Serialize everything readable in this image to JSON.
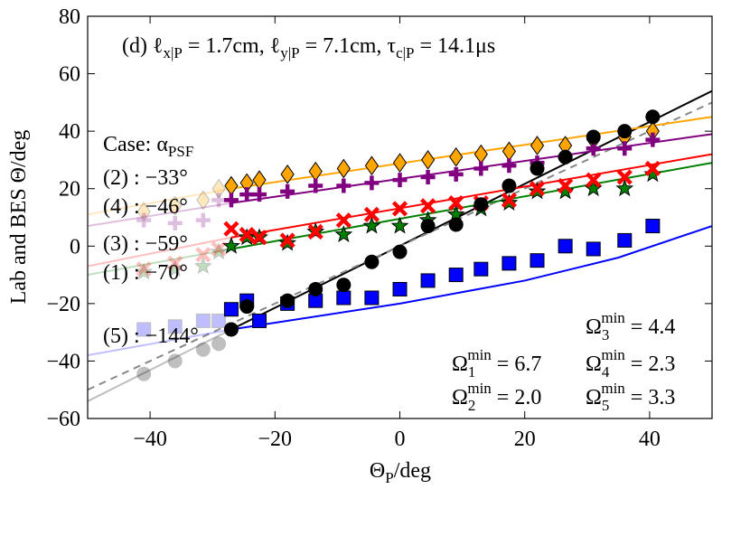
{
  "chart_data": {
    "type": "scatter",
    "annotation": [
      "(d) ℓ",
      "x|P",
      " = 1.7cm, ℓ",
      "y|P",
      " = 7.1cm, τ",
      "c|P",
      " = 14.1μs"
    ],
    "case_header": [
      "Case: α",
      "PSF"
    ],
    "case_labels": [
      "(2) : −33°",
      "(4) : −46°",
      "(3) : −59°",
      "(1) : −70°",
      "(5) : −144°"
    ],
    "omega_labels": [
      [
        "Ω",
        "3",
        "min",
        " = 4.4"
      ],
      [
        "Ω",
        "1",
        "min",
        " = 6.7"
      ],
      [
        "Ω",
        "4",
        "min",
        " = 2.3"
      ],
      [
        "Ω",
        "2",
        "min",
        " = 2.0"
      ],
      [
        "Ω",
        "5",
        "min",
        " = 3.3"
      ]
    ],
    "xlabel": [
      "Θ",
      "P",
      "/deg"
    ],
    "ylabel": "Lab and BES Θ/deg",
    "xlim": [
      -50,
      50
    ],
    "xticks": [
      {
        "value": -40,
        "label": "−40"
      },
      {
        "value": -20,
        "label": "−20"
      },
      0,
      20,
      40
    ],
    "ylim": [
      -60,
      80
    ],
    "yticks": [
      {
        "value": -60,
        "label": "−60"
      },
      {
        "value": -40,
        "label": "−40"
      },
      {
        "value": -20,
        "label": "−20"
      },
      0,
      20,
      40,
      60,
      80
    ],
    "lines": [
      {
        "color": "#000000",
        "opacity": 0.25,
        "x": [
          -50,
          -27
        ],
        "values": [
          -54,
          -29
        ]
      },
      {
        "color": "#000000",
        "opacity": 1,
        "x": [
          -27,
          50
        ],
        "values": [
          -29,
          54
        ]
      },
      {
        "color": "#888888",
        "opacity": 1,
        "dash": true,
        "x": [
          -50,
          50
        ],
        "values": [
          -50,
          50
        ]
      },
      {
        "color": "#ffa500",
        "opacity": 0.25,
        "x": [
          -50,
          -27
        ],
        "values": [
          11,
          20
        ]
      },
      {
        "color": "#ffa500",
        "opacity": 1,
        "x": [
          -27,
          50
        ],
        "values": [
          20,
          45
        ]
      },
      {
        "color": "#800080",
        "opacity": 0.25,
        "x": [
          -50,
          -27
        ],
        "values": [
          7,
          15
        ]
      },
      {
        "color": "#800080",
        "opacity": 1,
        "x": [
          -27,
          50
        ],
        "values": [
          15,
          39
        ]
      },
      {
        "color": "#ff0000",
        "opacity": 0.25,
        "x": [
          -50,
          -27
        ],
        "values": [
          -7,
          3
        ]
      },
      {
        "color": "#ff0000",
        "opacity": 1,
        "x": [
          -27,
          50
        ],
        "values": [
          3,
          32
        ]
      },
      {
        "color": "#008000",
        "opacity": 0.25,
        "x": [
          -50,
          -27
        ],
        "values": [
          -10,
          -1
        ]
      },
      {
        "color": "#008000",
        "opacity": 1,
        "x": [
          -27,
          50
        ],
        "values": [
          -1,
          29
        ]
      },
      {
        "color": "#0000ff",
        "opacity": 0.25,
        "x": [
          -50,
          -27
        ],
        "values": [
          -38,
          -29
        ]
      },
      {
        "color": "#0000ff",
        "opacity": 1,
        "x": [
          -27,
          0,
          20,
          35,
          50
        ],
        "values": [
          -29,
          -20,
          -12,
          -4,
          7
        ]
      }
    ],
    "series": [
      {
        "marker": "diamond",
        "color": "#ffa500",
        "opacity": 0.25,
        "x": [
          -41,
          -36,
          -31.5,
          -29
        ],
        "values": [
          12,
          14,
          16,
          20
        ]
      },
      {
        "marker": "diamond",
        "color": "#ffa500",
        "opacity": 1,
        "x": [
          -27,
          -24.5,
          -22.5,
          -18,
          -13.5,
          -9,
          -4.5,
          0,
          4.5,
          9,
          13,
          17.5,
          22,
          26.5,
          31,
          36,
          40.5
        ],
        "values": [
          21,
          22,
          23,
          25,
          26,
          27,
          28,
          29,
          30,
          31,
          32,
          33,
          35,
          35,
          37,
          38,
          40
        ]
      },
      {
        "marker": "plus",
        "color": "#800080",
        "opacity": 0.25,
        "x": [
          -41,
          -36,
          -31.5,
          -29
        ],
        "values": [
          9,
          8,
          9,
          16
        ]
      },
      {
        "marker": "plus",
        "color": "#800080",
        "opacity": 1,
        "x": [
          -27,
          -24.5,
          -22.5,
          -18,
          -13.5,
          -9,
          -4.5,
          0,
          4.5,
          9,
          13,
          17.5,
          22,
          26.5,
          31,
          36,
          40.5
        ],
        "values": [
          16,
          18,
          18,
          19,
          21,
          21,
          22,
          23,
          24,
          25,
          27,
          28,
          29,
          31,
          34,
          34,
          37
        ]
      },
      {
        "marker": "star",
        "color": "#008000",
        "opacity": 0.25,
        "x": [
          -41,
          -36,
          -31.5,
          -29
        ],
        "values": [
          -9,
          -8,
          -7,
          -2
        ]
      },
      {
        "marker": "star",
        "color": "#008000",
        "opacity": 1,
        "x": [
          -27,
          -24.5,
          -22.5,
          -18,
          -13.5,
          -9,
          -4.5,
          0,
          4.5,
          9,
          13,
          17.5,
          22,
          26.5,
          31,
          36,
          40.5
        ],
        "values": [
          0,
          3,
          3,
          1,
          5,
          4,
          7,
          7,
          9,
          11,
          13,
          15,
          19,
          19,
          20,
          20,
          25
        ]
      },
      {
        "marker": "x",
        "color": "#ff0000",
        "opacity": 0.25,
        "x": [
          -41,
          -36,
          -31.5,
          -29
        ],
        "values": [
          -8,
          -6,
          -3,
          -1
        ]
      },
      {
        "marker": "x",
        "color": "#ff0000",
        "opacity": 1,
        "x": [
          -27,
          -24.5,
          -22.5,
          -18,
          -13.5,
          -9,
          -4.5,
          0,
          4.5,
          9,
          13,
          17.5,
          22,
          26.5,
          31,
          36,
          40.5
        ],
        "values": [
          6,
          4,
          3,
          2,
          5,
          9,
          11,
          13,
          14,
          15,
          15,
          16,
          20,
          21,
          23,
          24,
          27
        ]
      },
      {
        "marker": "square",
        "color": "#0000ff",
        "opacity": 0.25,
        "x": [
          -41,
          -36,
          -31.5,
          -29
        ],
        "values": [
          -29,
          -28,
          -26,
          -26
        ]
      },
      {
        "marker": "square",
        "color": "#0000ff",
        "opacity": 1,
        "x": [
          -27,
          -24.5,
          -22.5,
          -18,
          -13.5,
          -9,
          -4.5,
          0,
          4.5,
          9,
          13,
          17.5,
          22,
          26.5,
          31,
          36,
          40.5
        ],
        "values": [
          -22,
          -19,
          -26,
          -20,
          -19,
          -18,
          -18,
          -15,
          -12,
          -10,
          -8,
          -6,
          -5,
          0,
          -1,
          2,
          7
        ]
      },
      {
        "marker": "circle",
        "color": "#000000",
        "opacity": 0.25,
        "x": [
          -41,
          -36,
          -31.5,
          -29
        ],
        "values": [
          -44.5,
          -40,
          -36,
          -34
        ]
      },
      {
        "marker": "circle",
        "color": "#000000",
        "opacity": 1,
        "x": [
          -27,
          -24.5,
          -18,
          -13.5,
          -9,
          -4.5,
          0,
          4.5,
          9,
          13,
          17.5,
          22,
          26.5,
          31,
          36,
          40.5
        ],
        "values": [
          -29,
          -21,
          -19,
          -15,
          -13.5,
          -5.5,
          -2,
          7,
          7.5,
          14.5,
          21,
          27,
          31,
          38,
          40,
          45
        ]
      }
    ]
  }
}
